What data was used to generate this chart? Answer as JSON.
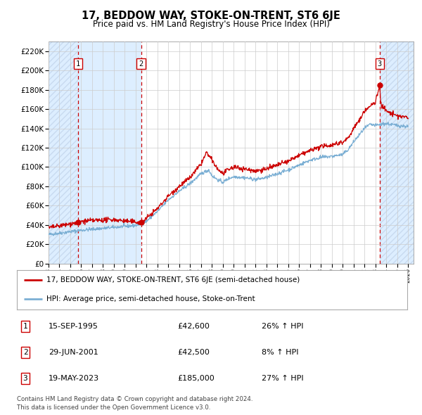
{
  "title": "17, BEDDOW WAY, STOKE-ON-TRENT, ST6 6JE",
  "subtitle": "Price paid vs. HM Land Registry's House Price Index (HPI)",
  "ylim": [
    0,
    230000
  ],
  "xlim_start": 1993.0,
  "xlim_end": 2026.5,
  "hpi_color": "#7bafd4",
  "price_color": "#cc0000",
  "background_color": "#ffffff",
  "plot_bg_color": "#ffffff",
  "shaded_color": "#ddeeff",
  "hatch_color": "#c8daf0",
  "grid_color": "#cccccc",
  "transactions": [
    {
      "date_decimal": 1995.71,
      "price": 42600,
      "label": "1"
    },
    {
      "date_decimal": 2001.49,
      "price": 42500,
      "label": "2"
    },
    {
      "date_decimal": 2023.38,
      "price": 185000,
      "label": "3"
    }
  ],
  "legend_entries": [
    "17, BEDDOW WAY, STOKE-ON-TRENT, ST6 6JE (semi-detached house)",
    "HPI: Average price, semi-detached house, Stoke-on-Trent"
  ],
  "table_rows": [
    {
      "num": "1",
      "date": "15-SEP-1995",
      "price": "£42,600",
      "hpi": "26% ↑ HPI"
    },
    {
      "num": "2",
      "date": "29-JUN-2001",
      "price": "£42,500",
      "hpi": "8% ↑ HPI"
    },
    {
      "num": "3",
      "date": "19-MAY-2023",
      "price": "£185,000",
      "hpi": "27% ↑ HPI"
    }
  ],
  "footer": "Contains HM Land Registry data © Crown copyright and database right 2024.\nThis data is licensed under the Open Government Licence v3.0.",
  "ytick_labels": [
    "£0",
    "£20K",
    "£40K",
    "£60K",
    "£80K",
    "£100K",
    "£120K",
    "£140K",
    "£160K",
    "£180K",
    "£200K",
    "£220K"
  ],
  "ytick_values": [
    0,
    20000,
    40000,
    60000,
    80000,
    100000,
    120000,
    140000,
    160000,
    180000,
    200000,
    220000
  ]
}
